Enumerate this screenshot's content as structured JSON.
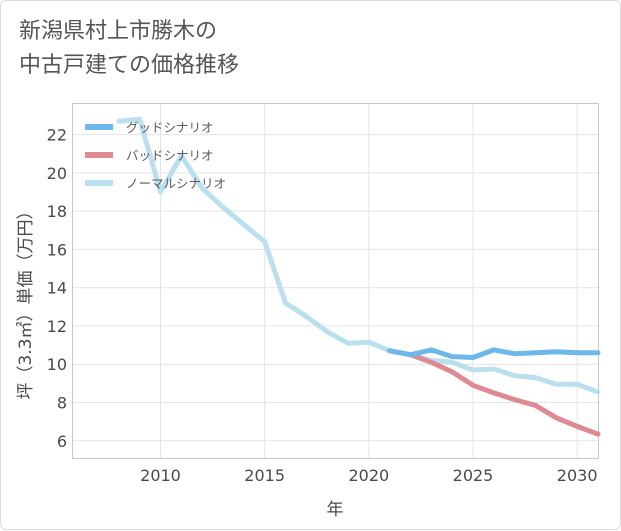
{
  "title": {
    "line1": "新潟県村上市勝木の",
    "line2": "中古戸建ての価格推移"
  },
  "chart_data": {
    "type": "line",
    "title": "新潟県村上市勝木の中古戸建ての価格推移",
    "xlabel": "年",
    "ylabel": "坪（3.3㎡）単価（万円）",
    "xlim": [
      2005.8,
      2031
    ],
    "ylim": [
      5.1,
      23.6
    ],
    "xticks": [
      2010,
      2015,
      2020,
      2025,
      2030
    ],
    "yticks": [
      6,
      8,
      10,
      12,
      14,
      16,
      18,
      20,
      22
    ],
    "grid": true,
    "legend_position": "top-left",
    "series": [
      {
        "name": "グッドシナリオ",
        "color": "#6cb8ea",
        "x": [
          2021,
          2022,
          2023,
          2024,
          2025,
          2026,
          2027,
          2028,
          2029,
          2030,
          2031
        ],
        "y": [
          10.7,
          10.5,
          10.75,
          10.4,
          10.35,
          10.75,
          10.55,
          10.6,
          10.65,
          10.6,
          10.6
        ]
      },
      {
        "name": "バッドシナリオ",
        "color": "#dd8a92",
        "x": [
          2021,
          2022,
          2023,
          2024,
          2025,
          2026,
          2027,
          2028,
          2029,
          2030,
          2031
        ],
        "y": [
          10.7,
          10.5,
          10.1,
          9.6,
          8.9,
          8.5,
          8.15,
          7.85,
          7.2,
          6.75,
          6.35
        ]
      },
      {
        "name": "ノーマルシナリオ",
        "color": "#badfef",
        "x": [
          2008,
          2009,
          2010,
          2011,
          2012,
          2013,
          2014,
          2015,
          2016,
          2017,
          2018,
          2019,
          2020,
          2021,
          2022,
          2023,
          2024,
          2025,
          2026,
          2027,
          2028,
          2029,
          2030,
          2031
        ],
        "y": [
          22.7,
          22.8,
          19.0,
          20.9,
          19.2,
          18.2,
          17.3,
          16.4,
          13.2,
          12.5,
          11.7,
          11.1,
          11.15,
          10.7,
          10.5,
          10.2,
          10.1,
          9.7,
          9.75,
          9.4,
          9.3,
          8.95,
          8.95,
          8.55
        ]
      }
    ]
  }
}
